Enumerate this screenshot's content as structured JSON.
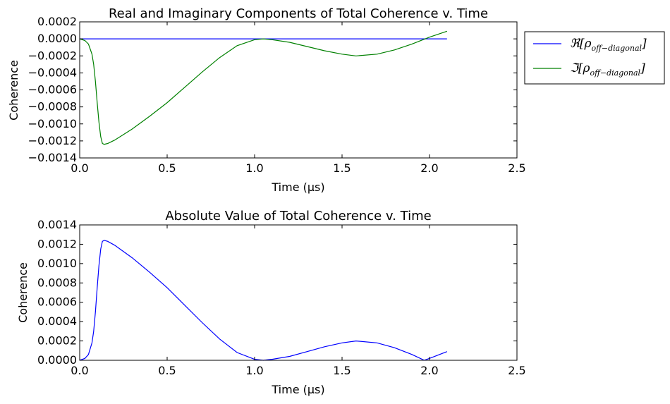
{
  "chart_data": [
    {
      "type": "line",
      "title": "Real and Imaginary Components of Total Coherence v. Time",
      "xlabel": "Time (μs)",
      "ylabel": "Coherence",
      "xlim": [
        0.0,
        2.5
      ],
      "ylim": [
        -0.0014,
        0.0002
      ],
      "xticks": [
        "0.0",
        "0.5",
        "1.0",
        "1.5",
        "2.0",
        "2.5"
      ],
      "yticks": [
        "−0.0014",
        "−0.0012",
        "−0.0010",
        "−0.0008",
        "−0.0006",
        "−0.0004",
        "−0.0002",
        "0.0000",
        "0.0002"
      ],
      "grid": false,
      "legend_position": "outside-right",
      "series": [
        {
          "name": "ℜ[ρ off−diagonal]",
          "color": "#0000ff",
          "x": [
            0.0,
            0.5,
            1.0,
            1.5,
            2.0,
            2.1
          ],
          "y": [
            0.0,
            0.0,
            0.0,
            0.0,
            0.0,
            0.0
          ]
        },
        {
          "name": "ℑ[ρ off−diagonal]",
          "color": "#008000",
          "x": [
            0.0,
            0.03,
            0.05,
            0.07,
            0.08,
            0.09,
            0.1,
            0.11,
            0.12,
            0.13,
            0.14,
            0.16,
            0.2,
            0.3,
            0.4,
            0.5,
            0.6,
            0.7,
            0.8,
            0.9,
            1.0,
            1.05,
            1.1,
            1.2,
            1.3,
            1.4,
            1.5,
            1.58,
            1.7,
            1.8,
            1.9,
            2.0,
            2.1
          ],
          "y": [
            0.0,
            -2e-05,
            -6e-05,
            -0.00018,
            -0.0003,
            -0.0005,
            -0.00075,
            -0.00098,
            -0.00115,
            -0.00123,
            -0.00124,
            -0.00123,
            -0.00119,
            -0.00106,
            -0.00091,
            -0.00075,
            -0.00057,
            -0.00039,
            -0.00022,
            -8e-05,
            -1e-05,
            0.0,
            -1e-05,
            -4e-05,
            -9e-05,
            -0.00014,
            -0.00018,
            -0.0002,
            -0.00018,
            -0.00013,
            -6e-05,
            2e-05,
            9e-05
          ]
        }
      ]
    },
    {
      "type": "line",
      "title": "Absolute Value of Total Coherence v. Time",
      "xlabel": "Time (μs)",
      "ylabel": "Coherence",
      "xlim": [
        0.0,
        2.5
      ],
      "ylim": [
        0.0,
        0.0014
      ],
      "xticks": [
        "0.0",
        "0.5",
        "1.0",
        "1.5",
        "2.0",
        "2.5"
      ],
      "yticks": [
        "0.0000",
        "0.0002",
        "0.0004",
        "0.0006",
        "0.0008",
        "0.0010",
        "0.0012",
        "0.0014"
      ],
      "grid": false,
      "series": [
        {
          "color": "#0000ff",
          "x": [
            0.0,
            0.03,
            0.05,
            0.07,
            0.08,
            0.09,
            0.1,
            0.11,
            0.12,
            0.13,
            0.14,
            0.16,
            0.2,
            0.3,
            0.4,
            0.5,
            0.6,
            0.7,
            0.8,
            0.9,
            1.0,
            1.05,
            1.1,
            1.2,
            1.3,
            1.4,
            1.5,
            1.58,
            1.7,
            1.8,
            1.9,
            1.97,
            2.0,
            2.1
          ],
          "y": [
            0.0,
            2e-05,
            6e-05,
            0.00018,
            0.0003,
            0.0005,
            0.00075,
            0.00098,
            0.00115,
            0.00123,
            0.00124,
            0.00123,
            0.00119,
            0.00106,
            0.00091,
            0.00075,
            0.00057,
            0.00039,
            0.00022,
            8e-05,
            1e-05,
            0.0,
            1e-05,
            4e-05,
            9e-05,
            0.00014,
            0.00018,
            0.0002,
            0.00018,
            0.00013,
            6e-05,
            0.0,
            2e-05,
            9e-05
          ]
        }
      ]
    }
  ],
  "legend": {
    "real_symbol": "ℜ[ρ",
    "imag_symbol": "ℑ[ρ",
    "subscript": "off−diagonal",
    "close": "]"
  },
  "colors": {
    "real": "#0000ff",
    "imag": "#008000",
    "abs": "#0000ff"
  }
}
